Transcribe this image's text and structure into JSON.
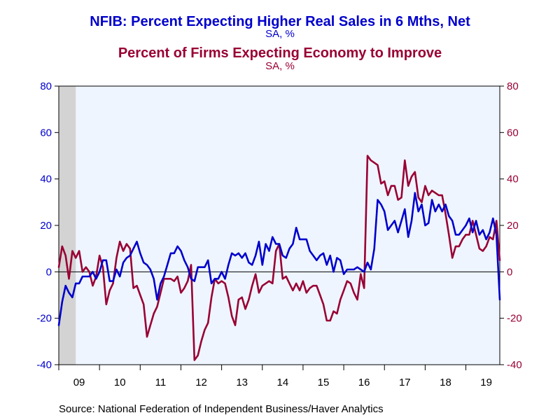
{
  "titles": {
    "series1_title": "NFIB: Percent Expecting Higher Real Sales in 6 Mths, Net",
    "series1_unit": "SA, %",
    "series2_title": "Percent of Firms Expecting Economy to Improve",
    "series2_unit": "SA, %"
  },
  "source": "Source:  National Federation of Independent Business/Haver Analytics",
  "colors": {
    "series1": "#0000cc",
    "series2": "#990033",
    "plot_background": "#eef5ff",
    "shade": "#d3d3d3"
  },
  "chart_data": {
    "type": "line",
    "frequency": "monthly",
    "x_start": "2009-01",
    "x_tick_labels": [
      "09",
      "10",
      "11",
      "12",
      "13",
      "14",
      "15",
      "16",
      "17",
      "18",
      "19"
    ],
    "ylim_left": [
      -40,
      80
    ],
    "ylim_right": [
      -40,
      80
    ],
    "y_ticks_left": [
      -40,
      -20,
      0,
      20,
      40,
      60,
      80
    ],
    "y_ticks_right": [
      -40,
      -20,
      0,
      20,
      40,
      60,
      80
    ],
    "grid": false,
    "zero_line": true,
    "shaded_period": [
      "2009-01",
      "2009-06"
    ],
    "series": [
      {
        "name": "NFIB: Percent Expecting Higher Real Sales in 6 Mths, Net",
        "axis": "left",
        "values": [
          -23,
          -13,
          -6,
          -9,
          -11,
          -5,
          -5,
          -2,
          -2,
          -2,
          0,
          -3,
          0,
          5,
          5,
          -4,
          -4,
          1,
          -2,
          4,
          6,
          7,
          10,
          13,
          8,
          4,
          3,
          1,
          -3,
          -12,
          -5,
          -2,
          3,
          8,
          8,
          11,
          9,
          5,
          2,
          -3,
          -4,
          2,
          2,
          2,
          5,
          -5,
          -3,
          -3,
          0,
          -3,
          3,
          8,
          7,
          8,
          6,
          8,
          4,
          3,
          7,
          13,
          3,
          12,
          9,
          15,
          12,
          12,
          7,
          6,
          10,
          12,
          19,
          14,
          14,
          14,
          9,
          7,
          5,
          7,
          8,
          3,
          7,
          0,
          6,
          5,
          -1,
          1,
          1,
          1,
          2,
          1,
          0,
          4,
          1,
          10,
          31,
          29,
          26,
          18,
          20,
          22,
          17,
          22,
          27,
          15,
          22,
          34,
          26,
          29,
          20,
          21,
          31,
          26,
          29,
          26,
          29,
          24,
          22,
          16,
          16,
          18,
          20,
          23,
          17,
          22,
          16,
          18,
          14,
          17,
          23,
          16,
          -12
        ],
        "color": "#0000cc"
      },
      {
        "name": "Percent of Firms Expecting Economy to Improve",
        "axis": "right",
        "values": [
          2,
          11,
          7,
          -3,
          9,
          6,
          9,
          0,
          2,
          0,
          -6,
          -2,
          7,
          2,
          -14,
          -8,
          -5,
          6,
          13,
          9,
          12,
          10,
          -7,
          -6,
          -10,
          -14,
          -28,
          -23,
          -18,
          -15,
          -9,
          -3,
          -3,
          -3,
          -4,
          -2,
          -9,
          -7,
          -4,
          3,
          -38,
          -36,
          -30,
          -25,
          -22,
          -11,
          -3,
          -5,
          -4,
          -5,
          -11,
          -19,
          -23,
          -12,
          -11,
          -16,
          -12,
          -6,
          -1,
          -9,
          -6,
          -5,
          -4,
          -5,
          9,
          12,
          -3,
          -2,
          -5,
          -8,
          -5,
          -8,
          -4,
          -9,
          -7,
          -6,
          -6,
          -10,
          -14,
          -21,
          -21,
          -17,
          -18,
          -12,
          -8,
          -4,
          -5,
          -9,
          -12,
          -1,
          -7,
          50,
          48,
          47,
          46,
          38,
          39,
          33,
          37,
          37,
          31,
          32,
          48,
          37,
          41,
          43,
          32,
          30,
          37,
          33,
          35,
          34,
          33,
          33,
          25,
          16,
          6,
          11,
          11,
          14,
          16,
          16,
          22,
          16,
          10,
          9,
          11,
          15,
          14,
          22,
          5
        ],
        "color": "#990033"
      }
    ]
  }
}
